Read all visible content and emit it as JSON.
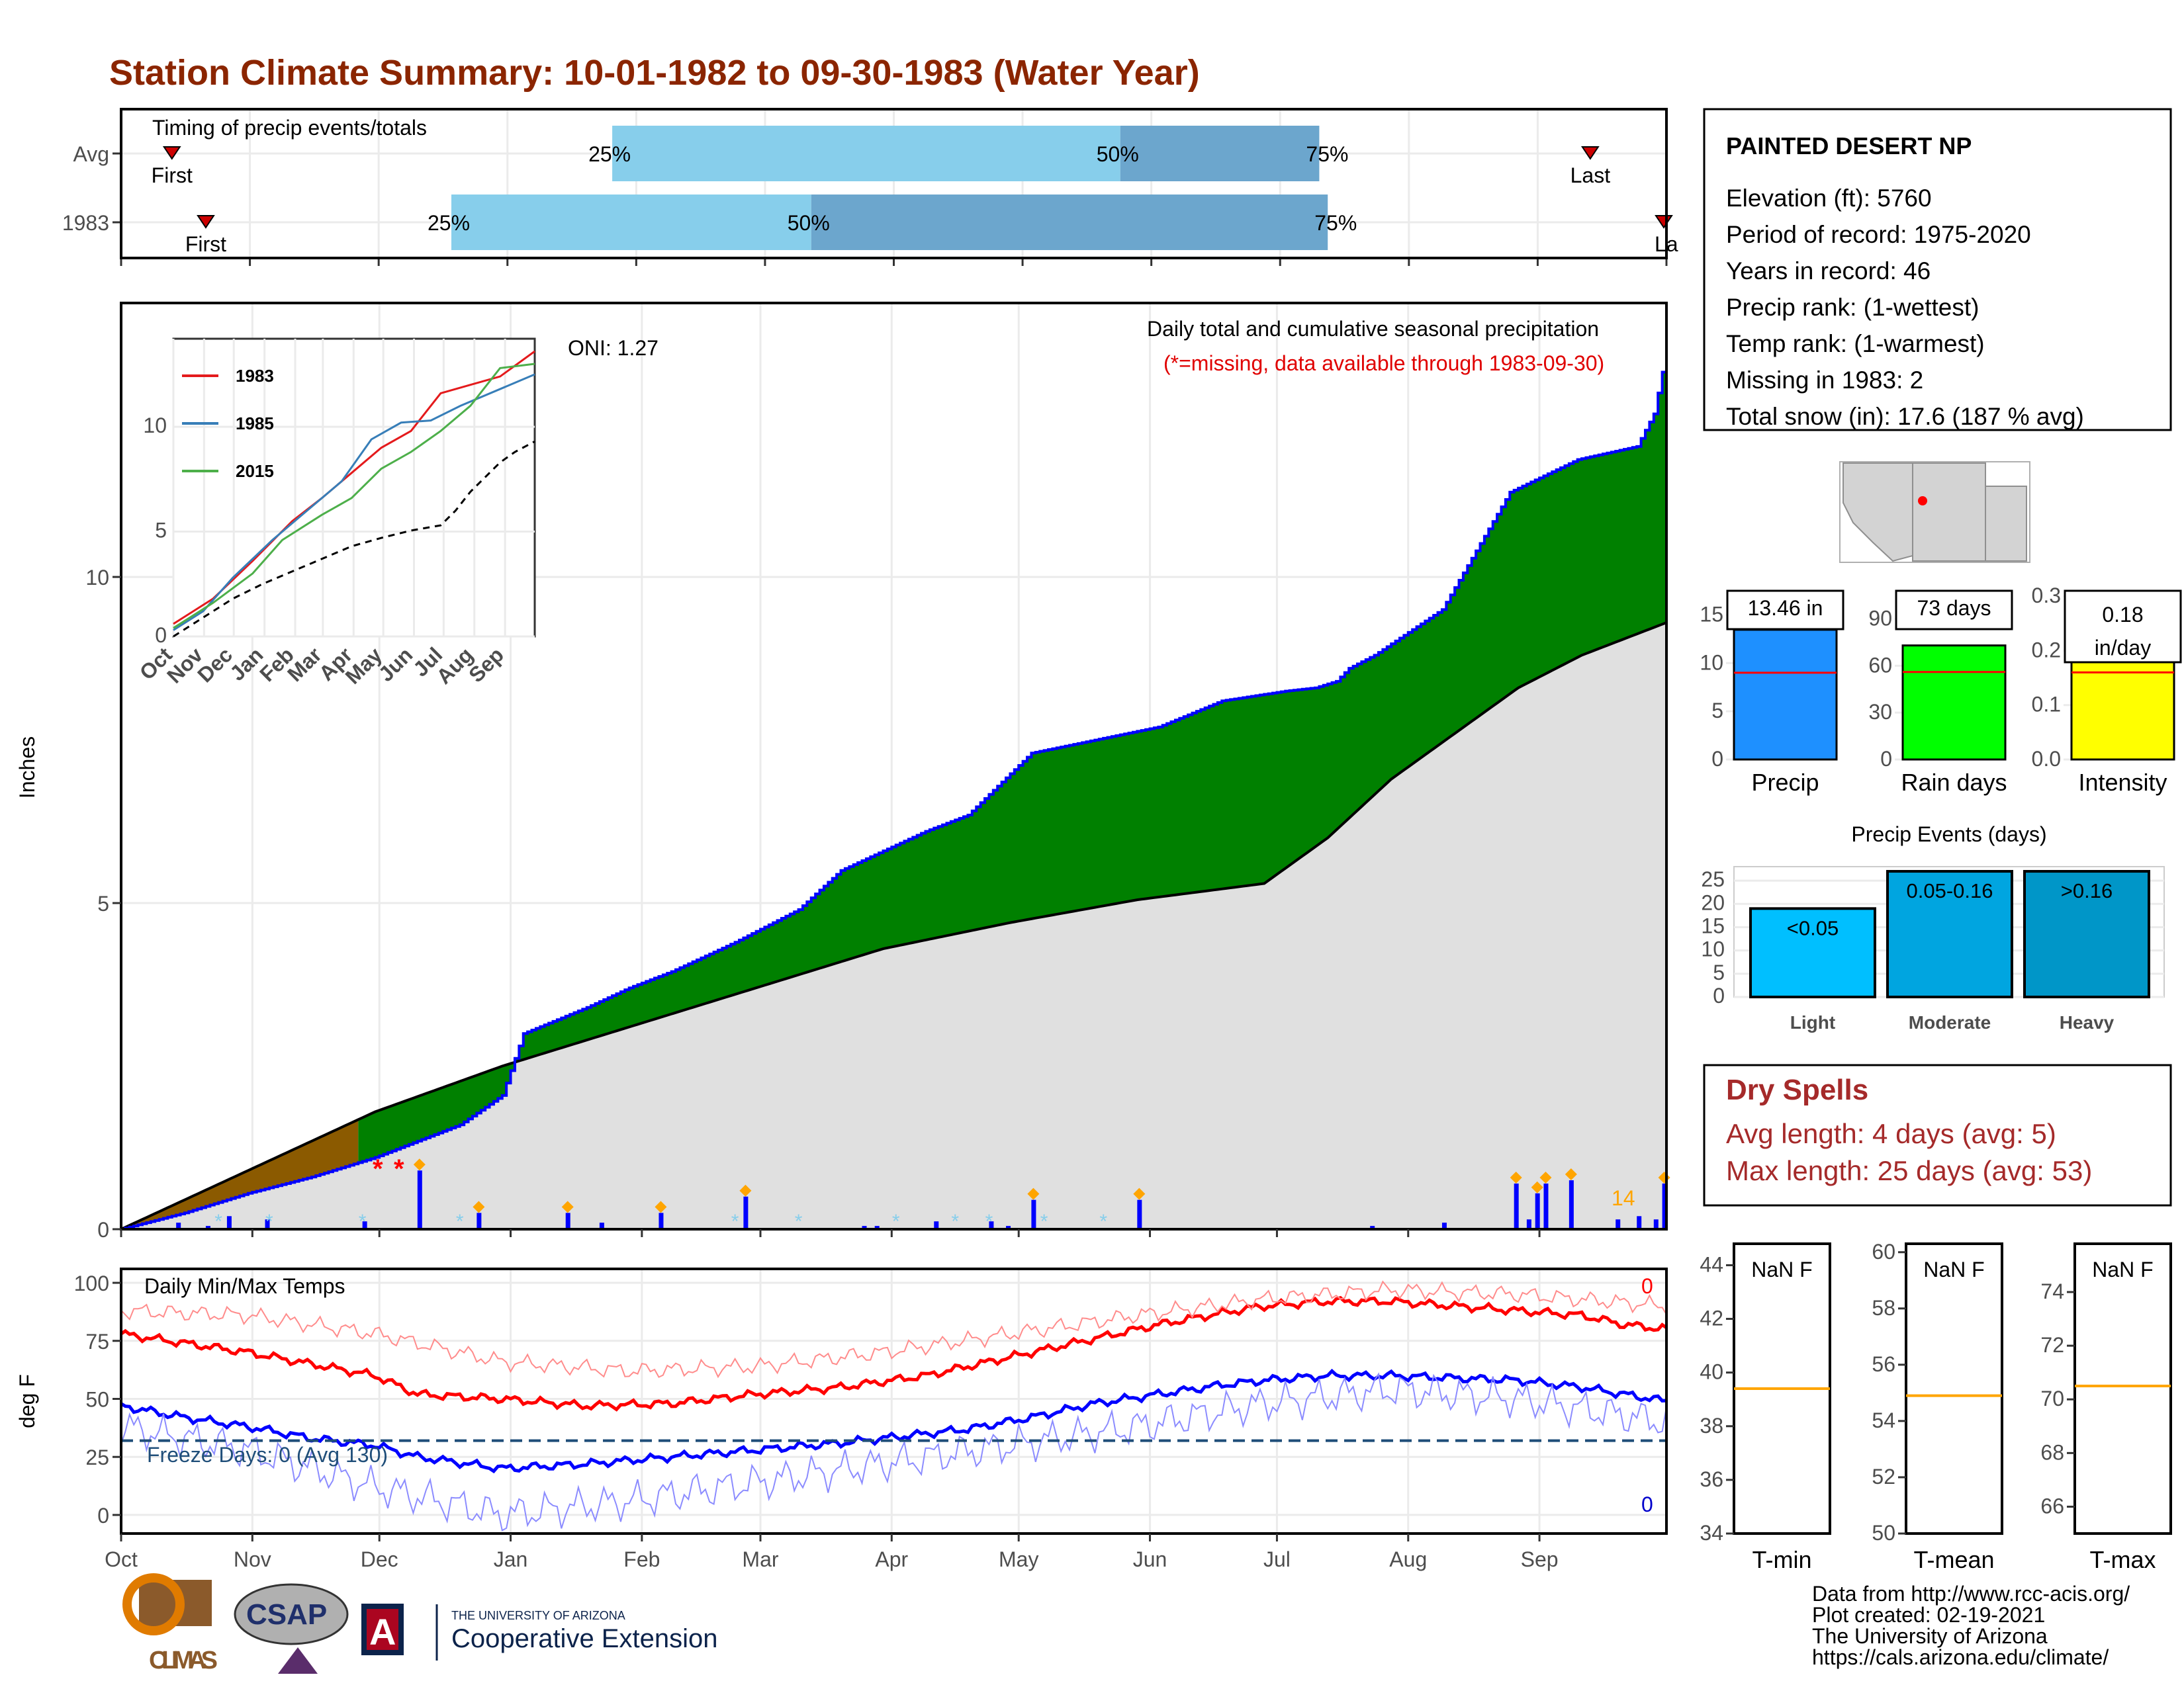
{
  "title": "Station Climate Summary: 10-01-1982 to 09-30-1983 (Water Year)",
  "timing": {
    "label": "Timing of precip events/totals",
    "rows": [
      {
        "name": "Avg",
        "first_day": 12,
        "last_day": 347,
        "p25": "25%",
        "p50": "50%",
        "p75": "75%",
        "p25_day": 116,
        "p50_day": 236,
        "p75_day": 283
      },
      {
        "name": "1983",
        "first_day": 20,
        "last_day": 365,
        "p25": "25%",
        "p50": "50%",
        "p75": "75%",
        "p25_day": 78,
        "p50_day": 163,
        "p75_day": 285
      }
    ],
    "first_label": "First",
    "last_label": "Last",
    "last_label_clipped": "La"
  },
  "station": {
    "name": "PAINTED DESERT NP",
    "lines": [
      "Elevation (ft): 5760",
      "Period of record: 1975-2020",
      "Years in record: 46",
      "Precip rank:  (1-wettest)",
      "Temp rank:  (1-warmest)",
      "Missing in 1983: 2",
      "Total snow (in): 17.6 (187 % avg)"
    ]
  },
  "precip_panel": {
    "ylabel": "Inches",
    "oni": "ONI: 1.27",
    "note1": "Daily total and cumulative seasonal precipitation",
    "note2": "(*=missing, data available through 1983-09-30)",
    "count_label": "14",
    "missing_marks": [
      "*",
      "*"
    ],
    "colors": {
      "above": "#008000",
      "below": "#8b5a00",
      "avg_fill": "#e0e0e0",
      "line": "#0000ff",
      "bars": "#0000ff",
      "snow": "#87ceeb",
      "marker": "#ffa500"
    }
  },
  "inset": {
    "series": [
      {
        "name": "1983",
        "color": "#e41a1c"
      },
      {
        "name": "1985",
        "color": "#377eb8"
      },
      {
        "name": "2015",
        "color": "#4daf4a"
      }
    ],
    "months": [
      "Oct",
      "Nov",
      "Dec",
      "Jan",
      "Feb",
      "Mar",
      "Apr",
      "May",
      "Jun",
      "Jul",
      "Aug",
      "Sep"
    ],
    "yticks": [
      "0",
      "5",
      "10"
    ]
  },
  "temp_panel": {
    "ylabel": "deg F",
    "label": "Daily Min/Max Temps",
    "freeze": "Freeze Days: 0 (Avg 130)",
    "count_max": "0",
    "count_min": "0",
    "yticks": [
      "0",
      "25",
      "50",
      "75",
      "100"
    ]
  },
  "months": [
    "Oct",
    "Nov",
    "Dec",
    "Jan",
    "Feb",
    "Mar",
    "Apr",
    "May",
    "Jun",
    "Jul",
    "Aug",
    "Sep"
  ],
  "bars_panel": {
    "items": [
      {
        "label": "Precip",
        "value_text": "13.46 in",
        "color": "#1e90ff",
        "value": 13.46,
        "avg": 9.0,
        "ymax": 17.5,
        "ticks": [
          "0",
          "5",
          "10",
          "15"
        ],
        "tickvals": [
          0,
          5,
          10,
          15
        ]
      },
      {
        "label": "Rain days",
        "value_text": "73 days",
        "color": "#00ff00",
        "value": 73,
        "avg": 56,
        "ymax": 108,
        "ticks": [
          "0",
          "30",
          "60",
          "90"
        ],
        "tickvals": [
          0,
          30,
          60,
          90
        ]
      },
      {
        "label": "Intensity",
        "value_text": "0.18 in/day",
        "color": "#ffff00",
        "value": 0.18,
        "avg": 0.16,
        "ymax": 0.31,
        "ticks": [
          "0.0",
          "0.1",
          "0.2",
          "0.3"
        ],
        "tickvals": [
          0,
          0.1,
          0.2,
          0.3
        ]
      }
    ]
  },
  "events": {
    "title": "Precip Events (days)",
    "categories": [
      "Light",
      "Moderate",
      "Heavy"
    ],
    "labels": [
      "<0.05",
      "0.05-0.16",
      ">0.16"
    ],
    "values": [
      19,
      27,
      27
    ],
    "colors": [
      "#00bfff",
      "#00a5e0",
      "#0096c8"
    ],
    "yticks": [
      "0",
      "5",
      "10",
      "15",
      "20",
      "25"
    ]
  },
  "dry_spells": {
    "title": "Dry Spells",
    "lines": [
      "Avg length: 4 days (avg: 5)",
      "Max length: 25 days (avg: 53)"
    ]
  },
  "temp_boxes": [
    {
      "label": "T-min",
      "value": "NaN F",
      "ticks": [
        "34",
        "36",
        "38",
        "40",
        "42",
        "44"
      ],
      "min": 34,
      "max": 44.8,
      "avg": 39.4
    },
    {
      "label": "T-mean",
      "value": "NaN F",
      "ticks": [
        "50",
        "52",
        "54",
        "56",
        "58",
        "60"
      ],
      "min": 50,
      "max": 60.3,
      "avg": 54.9
    },
    {
      "label": "T-max",
      "value": "NaN F",
      "ticks": [
        "66",
        "68",
        "70",
        "72",
        "74"
      ],
      "min": 65,
      "max": 75.8,
      "avg": 70.5
    }
  ],
  "credits": [
    "Data from http://www.rcc-acis.org/",
    "Plot created: 02-19-2021",
    "The University of Arizona",
    "https://cals.arizona.edu/climate/"
  ],
  "logos": {
    "climas": "CLIMAS",
    "csap": "CSAP",
    "ua_small": "THE UNIVERSITY OF ARIZONA",
    "ua_big": "Cooperative Extension"
  },
  "chart_data": [
    {
      "type": "area",
      "title": "Daily total and cumulative seasonal precipitation",
      "xlabel": "",
      "ylabel": "Inches",
      "x_unit": "day of water year (Oct 1 = 0)",
      "ylim": [
        0,
        14.2
      ],
      "series": [
        {
          "name": "1983 cumulative",
          "x": [
            0,
            15,
            30,
            45,
            60,
            80,
            90,
            95,
            110,
            120,
            130,
            145,
            160,
            170,
            190,
            200,
            215,
            230,
            245,
            260,
            275,
            282,
            287,
            290,
            296,
            312,
            328,
            344,
            358,
            362,
            365
          ],
          "values": [
            0,
            0.25,
            0.55,
            0.8,
            1.1,
            1.6,
            2.05,
            3.0,
            3.4,
            3.7,
            3.95,
            4.4,
            4.9,
            5.5,
            6.1,
            6.35,
            7.3,
            7.5,
            7.7,
            8.1,
            8.25,
            8.3,
            8.4,
            8.6,
            8.8,
            9.5,
            11.3,
            11.8,
            12.0,
            12.5,
            13.46
          ]
        },
        {
          "name": "Average cumulative",
          "x": [
            0,
            30,
            60,
            90,
            120,
            150,
            180,
            210,
            240,
            270,
            285,
            300,
            315,
            330,
            345,
            365
          ],
          "values": [
            0,
            0.9,
            1.8,
            2.5,
            3.1,
            3.7,
            4.3,
            4.7,
            5.05,
            5.3,
            6.0,
            6.9,
            7.6,
            8.3,
            8.8,
            9.3
          ]
        }
      ],
      "daily_bars": {
        "x": [
          13,
          20,
          25,
          34,
          57,
          70,
          84,
          105,
          113,
          127,
          147,
          175,
          178,
          192,
          205,
          209,
          215,
          240,
          295,
          312,
          329,
          332,
          334,
          336,
          342,
          353,
          358,
          362,
          364
        ],
        "values": [
          0.1,
          0.05,
          0.2,
          0.15,
          0.12,
          0.9,
          0.25,
          0.25,
          0.1,
          0.25,
          0.5,
          0.05,
          0.05,
          0.12,
          0.12,
          0.05,
          0.45,
          0.45,
          0.05,
          0.1,
          0.7,
          0.15,
          0.55,
          0.7,
          0.75,
          0.15,
          0.2,
          0.15,
          0.7
        ]
      }
    },
    {
      "type": "line",
      "title": "Daily Min/Max Temps",
      "ylabel": "deg F",
      "ylim": [
        -8,
        106
      ],
      "series": [
        {
          "name": "Max",
          "x": [
            0,
            15,
            30,
            45,
            60,
            70,
            90,
            110,
            130,
            150,
            170,
            190,
            200,
            215,
            230,
            245,
            260,
            270,
            285,
            300,
            315,
            330,
            345,
            355,
            365
          ],
          "values": [
            78,
            74,
            70,
            65,
            60,
            52,
            50,
            47,
            48,
            52,
            55,
            60,
            64,
            70,
            76,
            82,
            87,
            90,
            92,
            92,
            90,
            88,
            86,
            82,
            80
          ]
        },
        {
          "name": "Min",
          "x": [
            0,
            15,
            30,
            45,
            60,
            70,
            90,
            110,
            130,
            150,
            170,
            190,
            200,
            215,
            230,
            245,
            260,
            270,
            285,
            300,
            315,
            330,
            345,
            355,
            365
          ],
          "values": [
            47,
            42,
            38,
            33,
            30,
            25,
            20,
            22,
            25,
            28,
            31,
            35,
            37,
            42,
            48,
            52,
            56,
            58,
            60,
            60,
            59,
            58,
            55,
            52,
            49
          ]
        },
        {
          "name": "Avg max",
          "x": [
            0,
            30,
            60,
            90,
            120,
            150,
            180,
            210,
            240,
            270,
            300,
            330,
            365
          ],
          "values": [
            88,
            86,
            78,
            66,
            62,
            64,
            70,
            78,
            86,
            93,
            97,
            95,
            90
          ]
        },
        {
          "name": "Avg min",
          "x": [
            0,
            30,
            60,
            90,
            120,
            150,
            180,
            210,
            240,
            270,
            300,
            330,
            365
          ],
          "values": [
            38,
            28,
            12,
            0,
            6,
            14,
            22,
            30,
            38,
            48,
            54,
            50,
            40
          ]
        }
      ],
      "freeze_line": 32
    }
  ]
}
